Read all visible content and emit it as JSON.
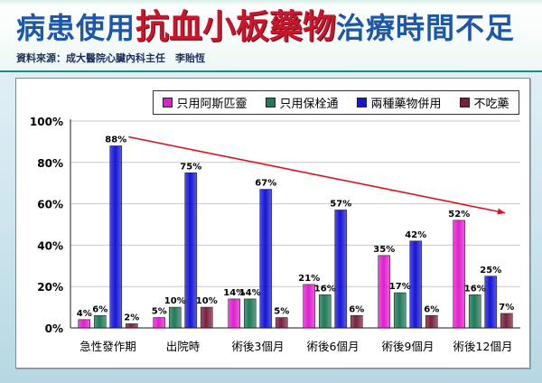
{
  "header": {
    "title_part1": "病患使用",
    "title_part2": "抗血小板藥物",
    "title_part3": "治療時間不足",
    "source": "資料來源：成大醫院心臟內科主任　李貽恆"
  },
  "colors": {
    "aspirin": "#e21fd0",
    "clopidogrel": "#1f7a58",
    "both": "#1616d8",
    "none": "#7a1f3c",
    "trend": "#e0101a",
    "title_blue": "#1d57a8",
    "title_red": "#c8162c"
  },
  "chart_data": {
    "type": "bar",
    "categories": [
      "急性發作期",
      "出院時",
      "術後3個月",
      "術後6個月",
      "術後9個月",
      "術後12個月"
    ],
    "series": [
      {
        "name": "只用阿斯匹靈",
        "values": [
          4,
          5,
          14,
          21,
          35,
          52
        ],
        "labels": [
          "4%",
          "5%",
          "14%",
          "21%",
          "35%",
          "52%"
        ]
      },
      {
        "name": "只用保栓通",
        "values": [
          6,
          10,
          14,
          16,
          17,
          16
        ],
        "labels": [
          "6%",
          "10%",
          "14%",
          "16%",
          "17%",
          "16%"
        ]
      },
      {
        "name": "兩種藥物併用",
        "values": [
          88,
          75,
          67,
          57,
          42,
          25
        ],
        "labels": [
          "88%",
          "75%",
          "67%",
          "57%",
          "42%",
          "25%"
        ]
      },
      {
        "name": "不吃藥",
        "values": [
          2,
          10,
          5,
          6,
          6,
          7
        ],
        "labels": [
          "2%",
          "10%",
          "5%",
          "6%",
          "6%",
          "7%"
        ]
      }
    ],
    "y_ticks": [
      "0%",
      "20%",
      "40%",
      "60%",
      "80%",
      "100%"
    ],
    "ylim": [
      0,
      100
    ],
    "legend_position": "top",
    "trend_line": {
      "from": "急性發作期",
      "to": "術後12個月",
      "shape": "declining arrow",
      "color": "red"
    }
  }
}
